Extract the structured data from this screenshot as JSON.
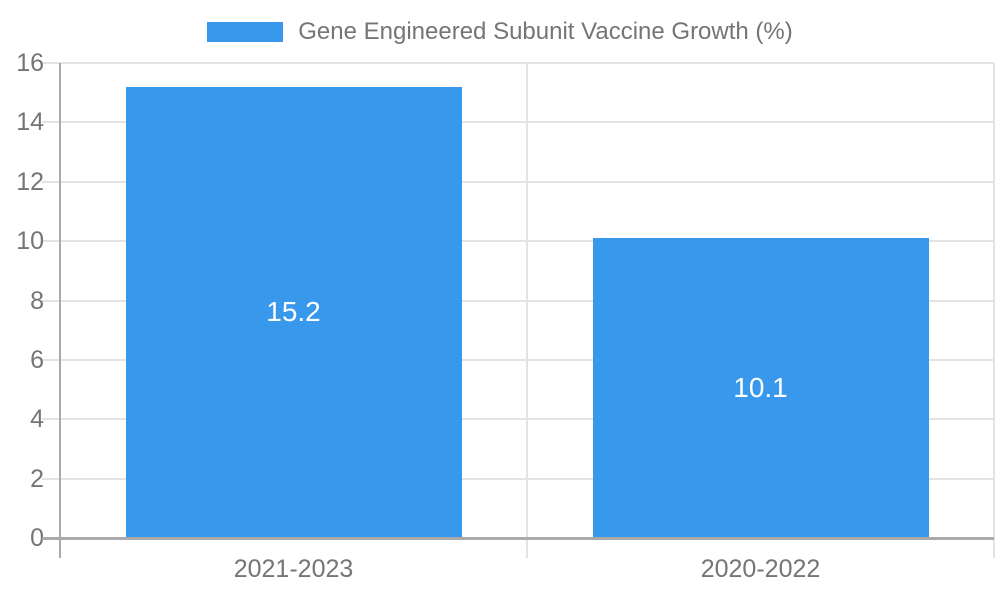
{
  "chart_data": {
    "type": "bar",
    "title": "",
    "xlabel": "",
    "ylabel": "",
    "legend": {
      "position": "top",
      "label": "Gene Engineered Subunit Vaccine Growth (%)"
    },
    "categories": [
      "2021-2023",
      "2020-2022"
    ],
    "values": [
      15.2,
      10.1
    ],
    "data_labels": [
      "15.2",
      "10.1"
    ],
    "ylim": [
      0,
      16
    ],
    "yticks": [
      0,
      2,
      4,
      6,
      8,
      10,
      12,
      14,
      16
    ],
    "grid": true,
    "colors": {
      "bar": "#3899ec",
      "text": "#757575",
      "data_label_text": "#ffffff",
      "gridline": "#e3e3e3",
      "axis_line": "#aaaaaa",
      "background": "#ffffff"
    }
  }
}
